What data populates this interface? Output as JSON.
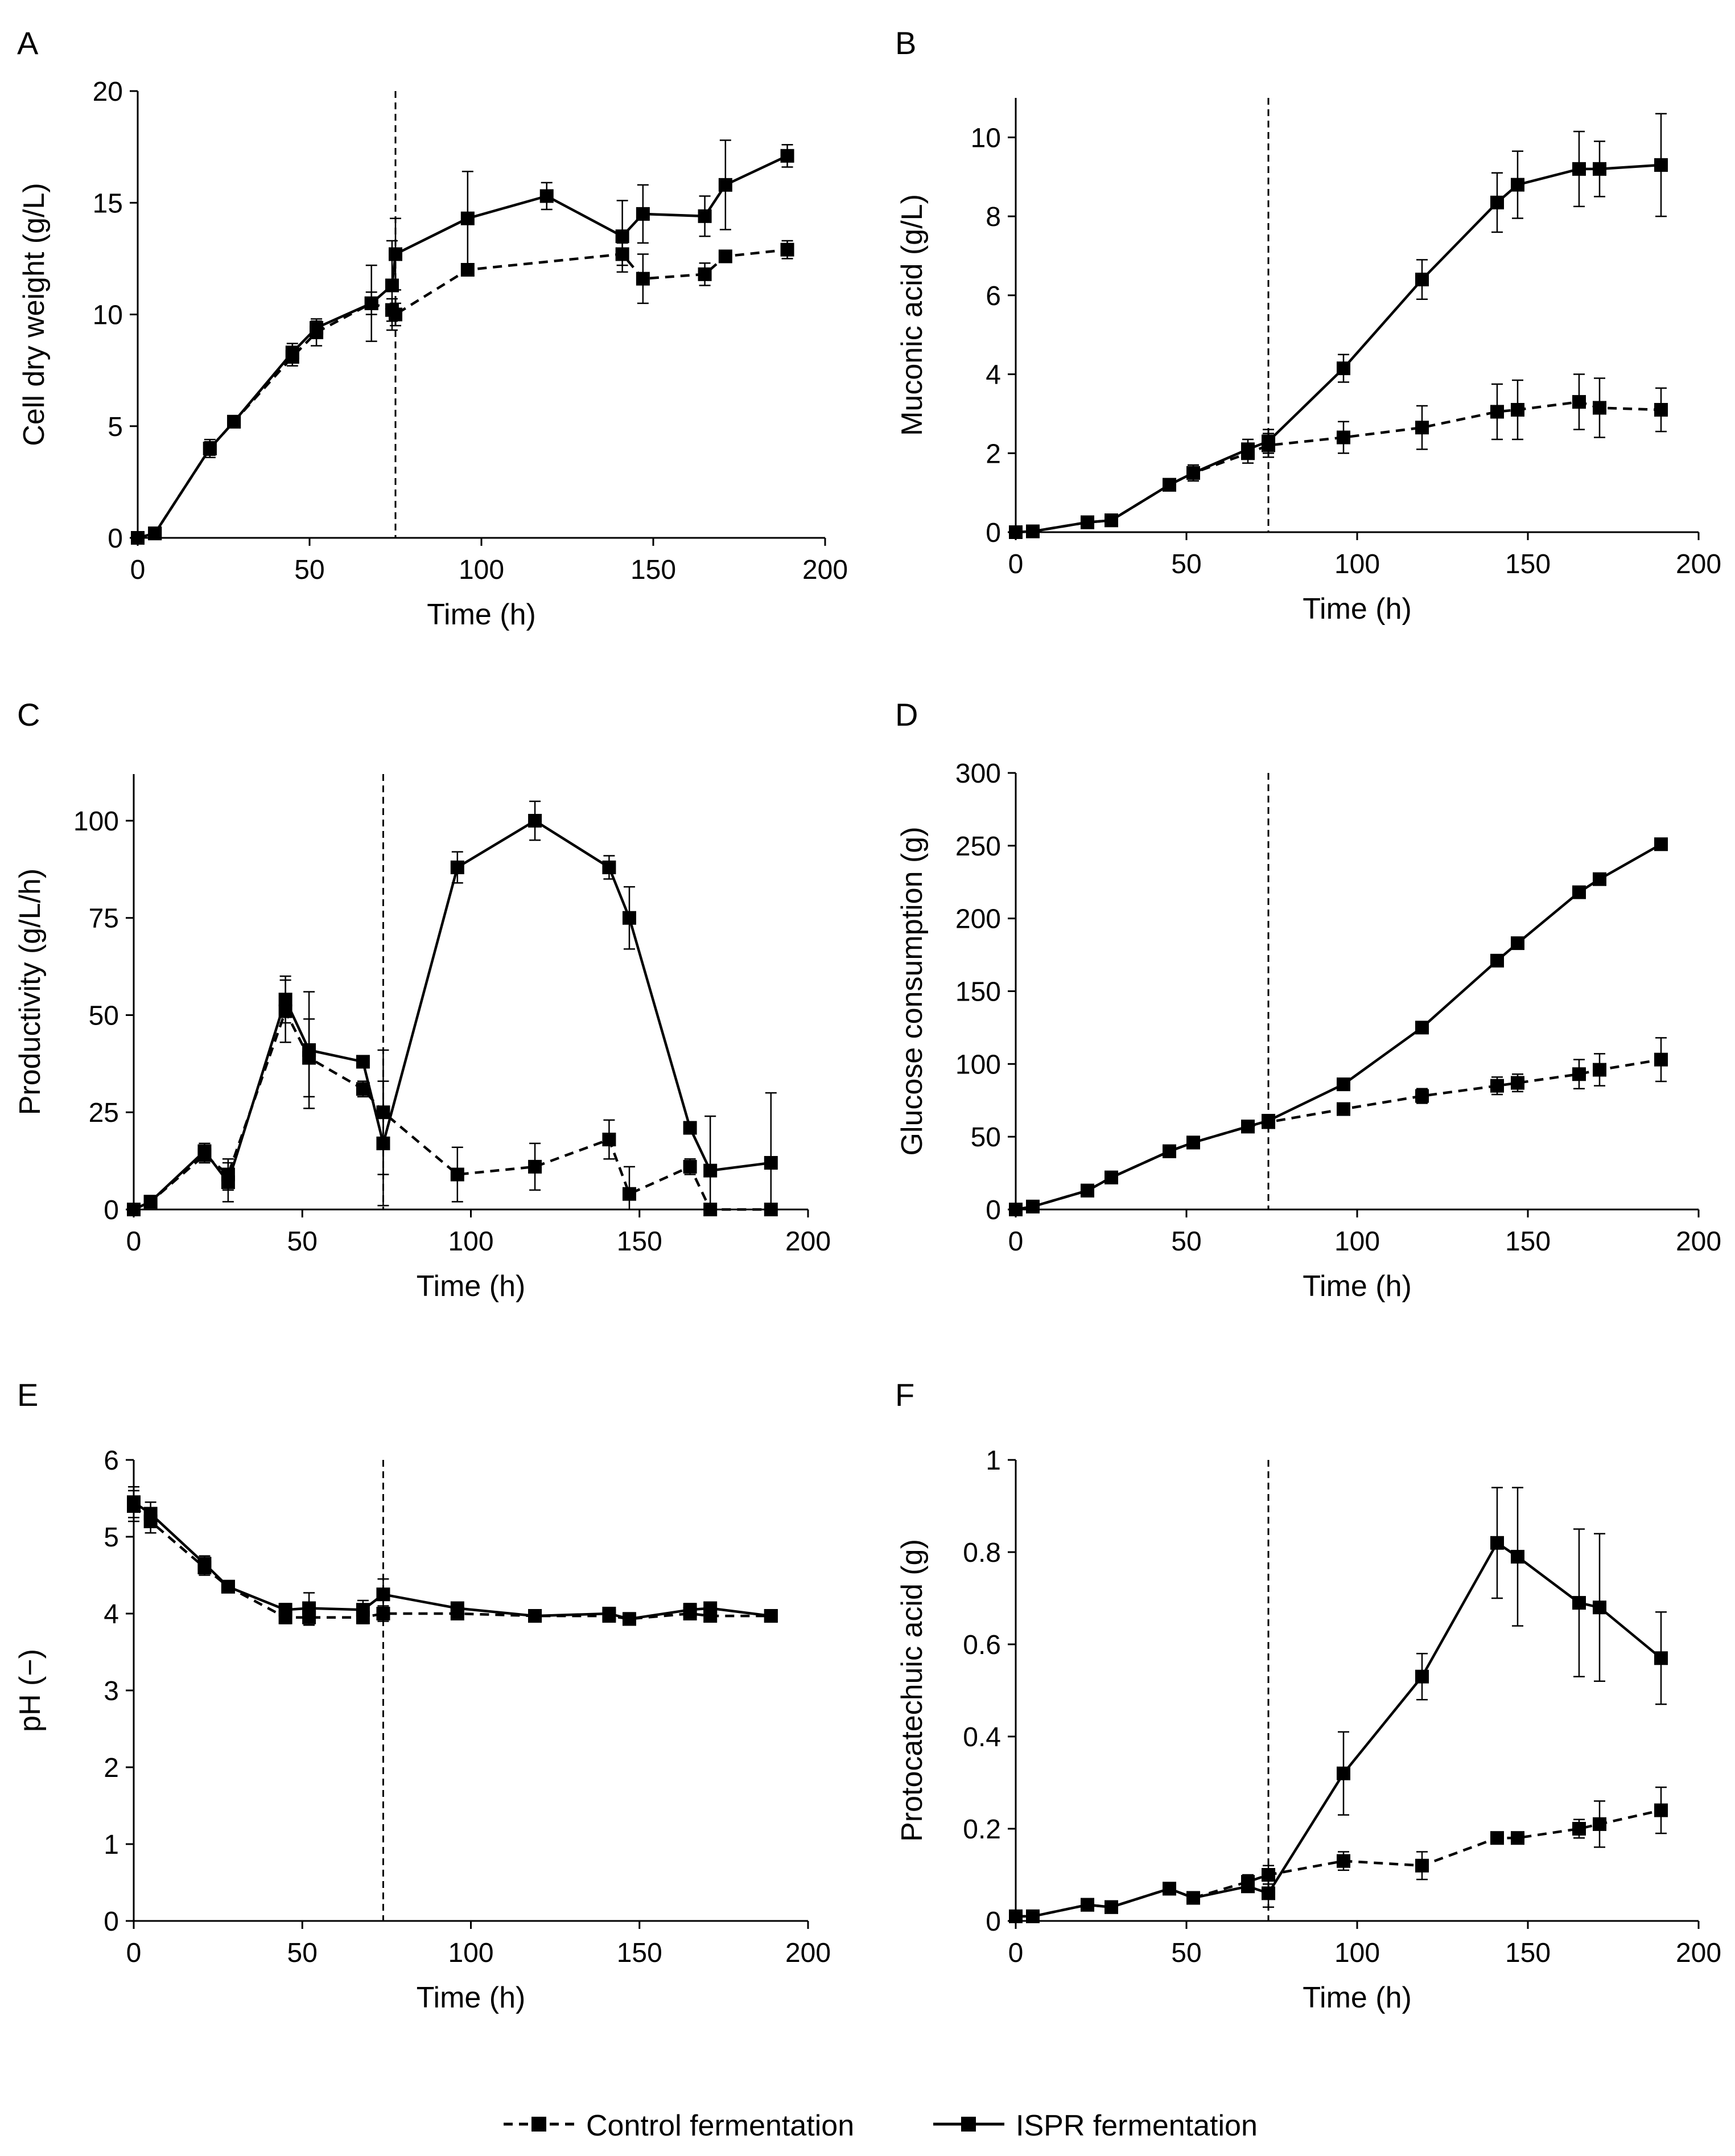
{
  "figure": {
    "legend": {
      "control_label": "Control fermentation",
      "ispr_label": "ISPR fermentation"
    }
  },
  "chart_data": [
    {
      "panel": "A",
      "type": "line",
      "xlabel": "Time (h)",
      "ylabel": "Cell dry weight (g/L)",
      "xlim": [
        0,
        200
      ],
      "ylim": [
        0,
        20
      ],
      "xticks": [
        "0",
        "50",
        "100",
        "150",
        "200"
      ],
      "yticks": [
        "0",
        "5",
        "10",
        "15",
        "20"
      ],
      "vline": 75,
      "series": [
        {
          "name": "Control fermentation",
          "x": [
            0,
            5,
            21,
            28,
            45,
            52,
            68,
            74,
            75,
            96,
            141,
            147,
            165,
            171,
            189
          ],
          "y": [
            0,
            0.2,
            4.0,
            5.2,
            8.1,
            9.2,
            10.5,
            10.2,
            10.0,
            12.0,
            12.7,
            11.6,
            11.8,
            12.6,
            12.9
          ],
          "err": [
            0,
            0.1,
            0.3,
            0.2,
            0.4,
            0.6,
            0.5,
            0.5,
            0.5,
            0,
            0.5,
            1.1,
            0.5,
            0.2,
            0.4
          ]
        },
        {
          "name": "ISPR fermentation",
          "x": [
            0,
            5,
            21,
            28,
            45,
            52,
            68,
            74,
            75,
            96,
            119,
            141,
            147,
            165,
            171,
            189
          ],
          "y": [
            0,
            0.2,
            4.0,
            5.2,
            8.3,
            9.4,
            10.5,
            11.3,
            12.7,
            14.3,
            15.3,
            13.5,
            14.5,
            14.4,
            15.8,
            17.1
          ],
          "err": [
            0,
            0.1,
            0.4,
            0.2,
            0.4,
            0.3,
            1.7,
            2.0,
            1.6,
            2.1,
            0.6,
            1.6,
            1.3,
            0.9,
            2.0,
            0.5
          ]
        }
      ]
    },
    {
      "panel": "B",
      "type": "line",
      "xlabel": "Time (h)",
      "ylabel": "Muconic acid (g/L)",
      "xlim": [
        0,
        200
      ],
      "ylim": [
        0,
        11
      ],
      "xticks": [
        "0",
        "50",
        "100",
        "150",
        "200"
      ],
      "yticks": [
        "0",
        "2",
        "4",
        "6",
        "8",
        "10"
      ],
      "vline": 74,
      "series": [
        {
          "name": "Control fermentation",
          "x": [
            0,
            5,
            21,
            28,
            45,
            52,
            68,
            74,
            96,
            119,
            141,
            147,
            165,
            171,
            189
          ],
          "y": [
            0,
            0.02,
            0.25,
            0.3,
            1.2,
            1.5,
            2.0,
            2.2,
            2.4,
            2.65,
            3.05,
            3.1,
            3.3,
            3.15,
            3.1
          ],
          "err": [
            0,
            0.02,
            0.08,
            0.1,
            0.15,
            0.2,
            0.25,
            0.3,
            0.4,
            0.55,
            0.7,
            0.75,
            0.7,
            0.75,
            0.55
          ]
        },
        {
          "name": "ISPR fermentation",
          "x": [
            0,
            5,
            21,
            28,
            45,
            52,
            68,
            74,
            96,
            119,
            141,
            147,
            165,
            171,
            189
          ],
          "y": [
            0,
            0.02,
            0.25,
            0.3,
            1.2,
            1.5,
            2.1,
            2.3,
            4.15,
            6.4,
            8.35,
            8.8,
            9.2,
            9.2,
            9.3
          ],
          "err": [
            0,
            0.02,
            0.08,
            0.1,
            0.15,
            0.2,
            0.25,
            0.3,
            0.35,
            0.5,
            0.75,
            0.85,
            0.95,
            0.7,
            1.3
          ]
        }
      ]
    },
    {
      "panel": "C",
      "type": "line",
      "xlabel": "Time (h)",
      "ylabel": "Productivity (g/L/h)",
      "xlim": [
        0,
        200
      ],
      "ylim": [
        0,
        112
      ],
      "xticks": [
        "0",
        "50",
        "100",
        "150",
        "200"
      ],
      "yticks": [
        "0",
        "25",
        "50",
        "75",
        "100"
      ],
      "vline": 74,
      "series": [
        {
          "name": "Control fermentation",
          "x": [
            0,
            5,
            21,
            28,
            45,
            52,
            68,
            74,
            96,
            119,
            141,
            147,
            165,
            171,
            189
          ],
          "y": [
            0,
            2,
            14,
            9,
            51,
            39,
            31,
            25,
            9,
            11,
            18,
            4,
            11,
            0,
            0
          ],
          "err": [
            0,
            1,
            2,
            4,
            8,
            10,
            2,
            16,
            7,
            6,
            5,
            7,
            2,
            0,
            0
          ]
        },
        {
          "name": "ISPR fermentation",
          "x": [
            0,
            5,
            21,
            28,
            45,
            52,
            68,
            74,
            96,
            119,
            141,
            147,
            165,
            171,
            189
          ],
          "y": [
            0,
            2,
            15,
            7,
            54,
            41,
            38,
            17,
            88,
            100,
            88,
            75,
            21,
            10,
            12
          ],
          "err": [
            0,
            1,
            2,
            5,
            6,
            15,
            1,
            16,
            4,
            5,
            3,
            8,
            1,
            14,
            18
          ]
        }
      ]
    },
    {
      "panel": "D",
      "type": "line",
      "xlabel": "Time (h)",
      "ylabel": "Glucose consumption (g)",
      "xlim": [
        0,
        200
      ],
      "ylim": [
        0,
        300
      ],
      "xticks": [
        "0",
        "50",
        "100",
        "150",
        "200"
      ],
      "yticks": [
        "0",
        "50",
        "100",
        "150",
        "200",
        "250",
        "300"
      ],
      "vline": 74,
      "series": [
        {
          "name": "Control fermentation",
          "x": [
            0,
            5,
            21,
            28,
            45,
            52,
            68,
            74,
            96,
            119,
            141,
            147,
            165,
            171,
            189
          ],
          "y": [
            0,
            2,
            13,
            22,
            40,
            46,
            57,
            60,
            69,
            78,
            85,
            87,
            93,
            96,
            103
          ],
          "err": [
            0,
            0,
            1,
            1,
            1,
            1,
            2,
            2,
            2,
            5,
            6,
            6,
            10,
            11,
            15
          ]
        },
        {
          "name": "ISPR fermentation",
          "x": [
            0,
            5,
            21,
            28,
            45,
            52,
            68,
            74,
            96,
            119,
            141,
            147,
            165,
            171,
            189
          ],
          "y": [
            0,
            2,
            13,
            22,
            40,
            46,
            57,
            61,
            86,
            125,
            171,
            183,
            218,
            227,
            251
          ],
          "err": [
            0,
            0,
            1,
            1,
            1,
            1,
            2,
            2,
            2,
            2,
            2,
            2,
            2,
            2,
            2
          ]
        }
      ]
    },
    {
      "panel": "E",
      "type": "line",
      "xlabel": "Time (h)",
      "ylabel": "pH (−)",
      "xlim": [
        0,
        200
      ],
      "ylim": [
        0,
        6
      ],
      "xticks": [
        "0",
        "50",
        "100",
        "150",
        "200"
      ],
      "yticks": [
        "0",
        "1",
        "2",
        "3",
        "4",
        "5",
        "6"
      ],
      "vline": 74,
      "series": [
        {
          "name": "Control fermentation",
          "x": [
            0,
            5,
            21,
            28,
            45,
            52,
            68,
            74,
            96,
            119,
            141,
            147,
            165,
            171,
            189
          ],
          "y": [
            5.4,
            5.2,
            4.6,
            4.35,
            3.95,
            3.95,
            3.95,
            4.0,
            4.0,
            3.97,
            3.97,
            3.93,
            4.0,
            3.97,
            3.97
          ],
          "err": [
            0.2,
            0.15,
            0.1,
            0.05,
            0.08,
            0.1,
            0.08,
            0.1,
            0.05,
            0.03,
            0.05,
            0.05,
            0.05,
            0.05,
            0.03
          ]
        },
        {
          "name": "ISPR fermentation",
          "x": [
            0,
            5,
            21,
            28,
            45,
            52,
            68,
            74,
            96,
            119,
            141,
            147,
            165,
            171,
            189
          ],
          "y": [
            5.45,
            5.3,
            4.65,
            4.35,
            4.05,
            4.07,
            4.05,
            4.25,
            4.07,
            3.97,
            4.0,
            3.93,
            4.05,
            4.07,
            3.97
          ],
          "err": [
            0.2,
            0.15,
            0.1,
            0.05,
            0.08,
            0.2,
            0.12,
            0.2,
            0.05,
            0.03,
            0.08,
            0.08,
            0.08,
            0.05,
            0.03
          ]
        }
      ]
    },
    {
      "panel": "F",
      "type": "line",
      "xlabel": "Time (h)",
      "ylabel": "Protocatechuic acid (g)",
      "xlim": [
        0,
        200
      ],
      "ylim": [
        0,
        1
      ],
      "xticks": [
        "0",
        "50",
        "100",
        "150",
        "200"
      ],
      "yticks": [
        "0",
        "0.2",
        "0.4",
        "0.6",
        "0.8",
        "1"
      ],
      "vline": 74,
      "series": [
        {
          "name": "Control fermentation",
          "x": [
            0,
            5,
            21,
            28,
            45,
            52,
            68,
            74,
            96,
            119,
            141,
            147,
            165,
            171,
            189
          ],
          "y": [
            0.01,
            0.01,
            0.035,
            0.03,
            0.07,
            0.05,
            0.085,
            0.1,
            0.13,
            0.12,
            0.18,
            0.18,
            0.2,
            0.21,
            0.24
          ],
          "err": [
            0,
            0,
            0.005,
            0.005,
            0.01,
            0.005,
            0.015,
            0.02,
            0.02,
            0.03,
            0.01,
            0.01,
            0.02,
            0.05,
            0.05
          ]
        },
        {
          "name": "ISPR fermentation",
          "x": [
            0,
            5,
            21,
            28,
            45,
            52,
            68,
            74,
            96,
            119,
            141,
            147,
            165,
            171,
            189
          ],
          "y": [
            0.01,
            0.01,
            0.035,
            0.03,
            0.07,
            0.05,
            0.075,
            0.06,
            0.32,
            0.53,
            0.82,
            0.79,
            0.69,
            0.68,
            0.57
          ],
          "err": [
            0,
            0,
            0.005,
            0.005,
            0.01,
            0.005,
            0.01,
            0.03,
            0.09,
            0.05,
            0.12,
            0.15,
            0.16,
            0.16,
            0.1
          ]
        }
      ]
    }
  ]
}
